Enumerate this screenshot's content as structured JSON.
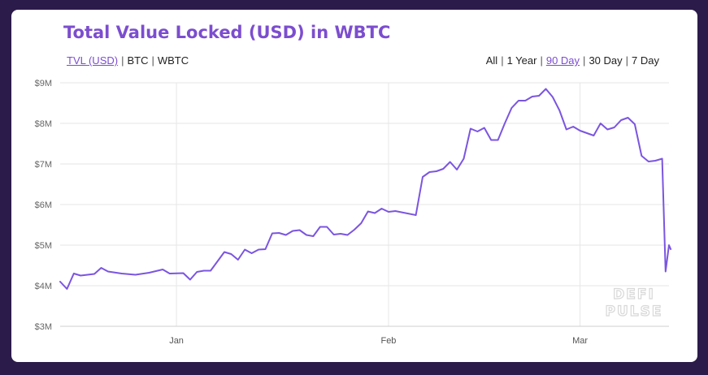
{
  "title": "Total Value Locked (USD) in WBTC",
  "unit_options": [
    {
      "label": "TVL (USD)",
      "active": true
    },
    {
      "label": "BTC",
      "active": false
    },
    {
      "label": "WBTC",
      "active": false
    }
  ],
  "range_options": [
    {
      "label": "All",
      "active": false
    },
    {
      "label": "1 Year",
      "active": false
    },
    {
      "label": "90 Day",
      "active": true
    },
    {
      "label": "30 Day",
      "active": false
    },
    {
      "label": "7 Day",
      "active": false
    }
  ],
  "colors": {
    "line": "#7b55e0",
    "accent": "#7c4dcf",
    "background": "#2b1b4a"
  },
  "watermark": [
    "DEFI",
    "PULSE"
  ],
  "chart_data": {
    "type": "line",
    "title": "Total Value Locked (USD) in WBTC",
    "xlabel": "",
    "ylabel": "",
    "x_range": [
      "2018-12-15",
      "2019-03-14"
    ],
    "ylim": [
      3000000,
      9000000
    ],
    "y_ticks": [
      {
        "value": 3000000,
        "label": "$3M"
      },
      {
        "value": 4000000,
        "label": "$4M"
      },
      {
        "value": 5000000,
        "label": "$5M"
      },
      {
        "value": 6000000,
        "label": "$6M"
      },
      {
        "value": 7000000,
        "label": "$7M"
      },
      {
        "value": 8000000,
        "label": "$8M"
      },
      {
        "value": 9000000,
        "label": "$9M"
      }
    ],
    "x_ticks": [
      {
        "date": "2019-01-01",
        "label": "Jan"
      },
      {
        "date": "2019-02-01",
        "label": "Feb"
      },
      {
        "date": "2019-03-01",
        "label": "Mar"
      }
    ],
    "grid": true,
    "series": [
      {
        "values": [
          [
            "2018-12-15",
            4100000
          ],
          [
            "2018-12-16",
            3920000
          ],
          [
            "2018-12-17",
            4300000
          ],
          [
            "2018-12-18",
            4250000
          ],
          [
            "2018-12-20",
            4290000
          ],
          [
            "2018-12-21",
            4440000
          ],
          [
            "2018-12-22",
            4350000
          ],
          [
            "2018-12-24",
            4300000
          ],
          [
            "2018-12-26",
            4270000
          ],
          [
            "2018-12-28",
            4320000
          ],
          [
            "2018-12-30",
            4400000
          ],
          [
            "2018-12-31",
            4300000
          ],
          [
            "2019-01-02",
            4310000
          ],
          [
            "2019-01-03",
            4150000
          ],
          [
            "2019-01-04",
            4340000
          ],
          [
            "2019-01-05",
            4370000
          ],
          [
            "2019-01-06",
            4370000
          ],
          [
            "2019-01-08",
            4830000
          ],
          [
            "2019-01-09",
            4780000
          ],
          [
            "2019-01-10",
            4640000
          ],
          [
            "2019-01-11",
            4890000
          ],
          [
            "2019-01-12",
            4800000
          ],
          [
            "2019-01-13",
            4890000
          ],
          [
            "2019-01-14",
            4900000
          ],
          [
            "2019-01-15",
            5290000
          ],
          [
            "2019-01-16",
            5300000
          ],
          [
            "2019-01-17",
            5250000
          ],
          [
            "2019-01-18",
            5350000
          ],
          [
            "2019-01-19",
            5370000
          ],
          [
            "2019-01-20",
            5250000
          ],
          [
            "2019-01-21",
            5220000
          ],
          [
            "2019-01-22",
            5450000
          ],
          [
            "2019-01-23",
            5450000
          ],
          [
            "2019-01-24",
            5260000
          ],
          [
            "2019-01-25",
            5280000
          ],
          [
            "2019-01-26",
            5250000
          ],
          [
            "2019-01-27",
            5380000
          ],
          [
            "2019-01-28",
            5540000
          ],
          [
            "2019-01-29",
            5830000
          ],
          [
            "2019-01-30",
            5790000
          ],
          [
            "2019-01-31",
            5900000
          ],
          [
            "2019-02-01",
            5820000
          ],
          [
            "2019-02-02",
            5840000
          ],
          [
            "2019-02-05",
            5740000
          ],
          [
            "2019-02-06",
            6680000
          ],
          [
            "2019-02-07",
            6800000
          ],
          [
            "2019-02-08",
            6820000
          ],
          [
            "2019-02-09",
            6880000
          ],
          [
            "2019-02-10",
            7050000
          ],
          [
            "2019-02-11",
            6860000
          ],
          [
            "2019-02-12",
            7130000
          ],
          [
            "2019-02-13",
            7870000
          ],
          [
            "2019-02-14",
            7800000
          ],
          [
            "2019-02-15",
            7890000
          ],
          [
            "2019-02-16",
            7590000
          ],
          [
            "2019-02-17",
            7590000
          ],
          [
            "2019-02-18",
            8000000
          ],
          [
            "2019-02-19",
            8380000
          ],
          [
            "2019-02-20",
            8560000
          ],
          [
            "2019-02-21",
            8560000
          ],
          [
            "2019-02-22",
            8660000
          ],
          [
            "2019-02-23",
            8680000
          ],
          [
            "2019-02-24",
            8850000
          ],
          [
            "2019-02-25",
            8650000
          ],
          [
            "2019-02-26",
            8320000
          ],
          [
            "2019-02-27",
            7850000
          ],
          [
            "2019-02-28",
            7920000
          ],
          [
            "2019-03-01",
            7820000
          ],
          [
            "2019-03-03",
            7700000
          ],
          [
            "2019-03-04",
            8000000
          ],
          [
            "2019-03-05",
            7850000
          ],
          [
            "2019-03-06",
            7900000
          ],
          [
            "2019-03-07",
            8080000
          ],
          [
            "2019-03-08",
            8140000
          ],
          [
            "2019-03-09",
            7980000
          ],
          [
            "2019-03-10",
            7200000
          ],
          [
            "2019-03-11",
            7060000
          ],
          [
            "2019-03-12",
            7080000
          ],
          [
            "2019-03-13",
            7130000
          ],
          [
            "2019-03-13T12:00",
            4350000
          ],
          [
            "2019-03-14",
            5000000
          ],
          [
            "2019-03-14T06:00",
            4900000
          ]
        ]
      }
    ]
  }
}
